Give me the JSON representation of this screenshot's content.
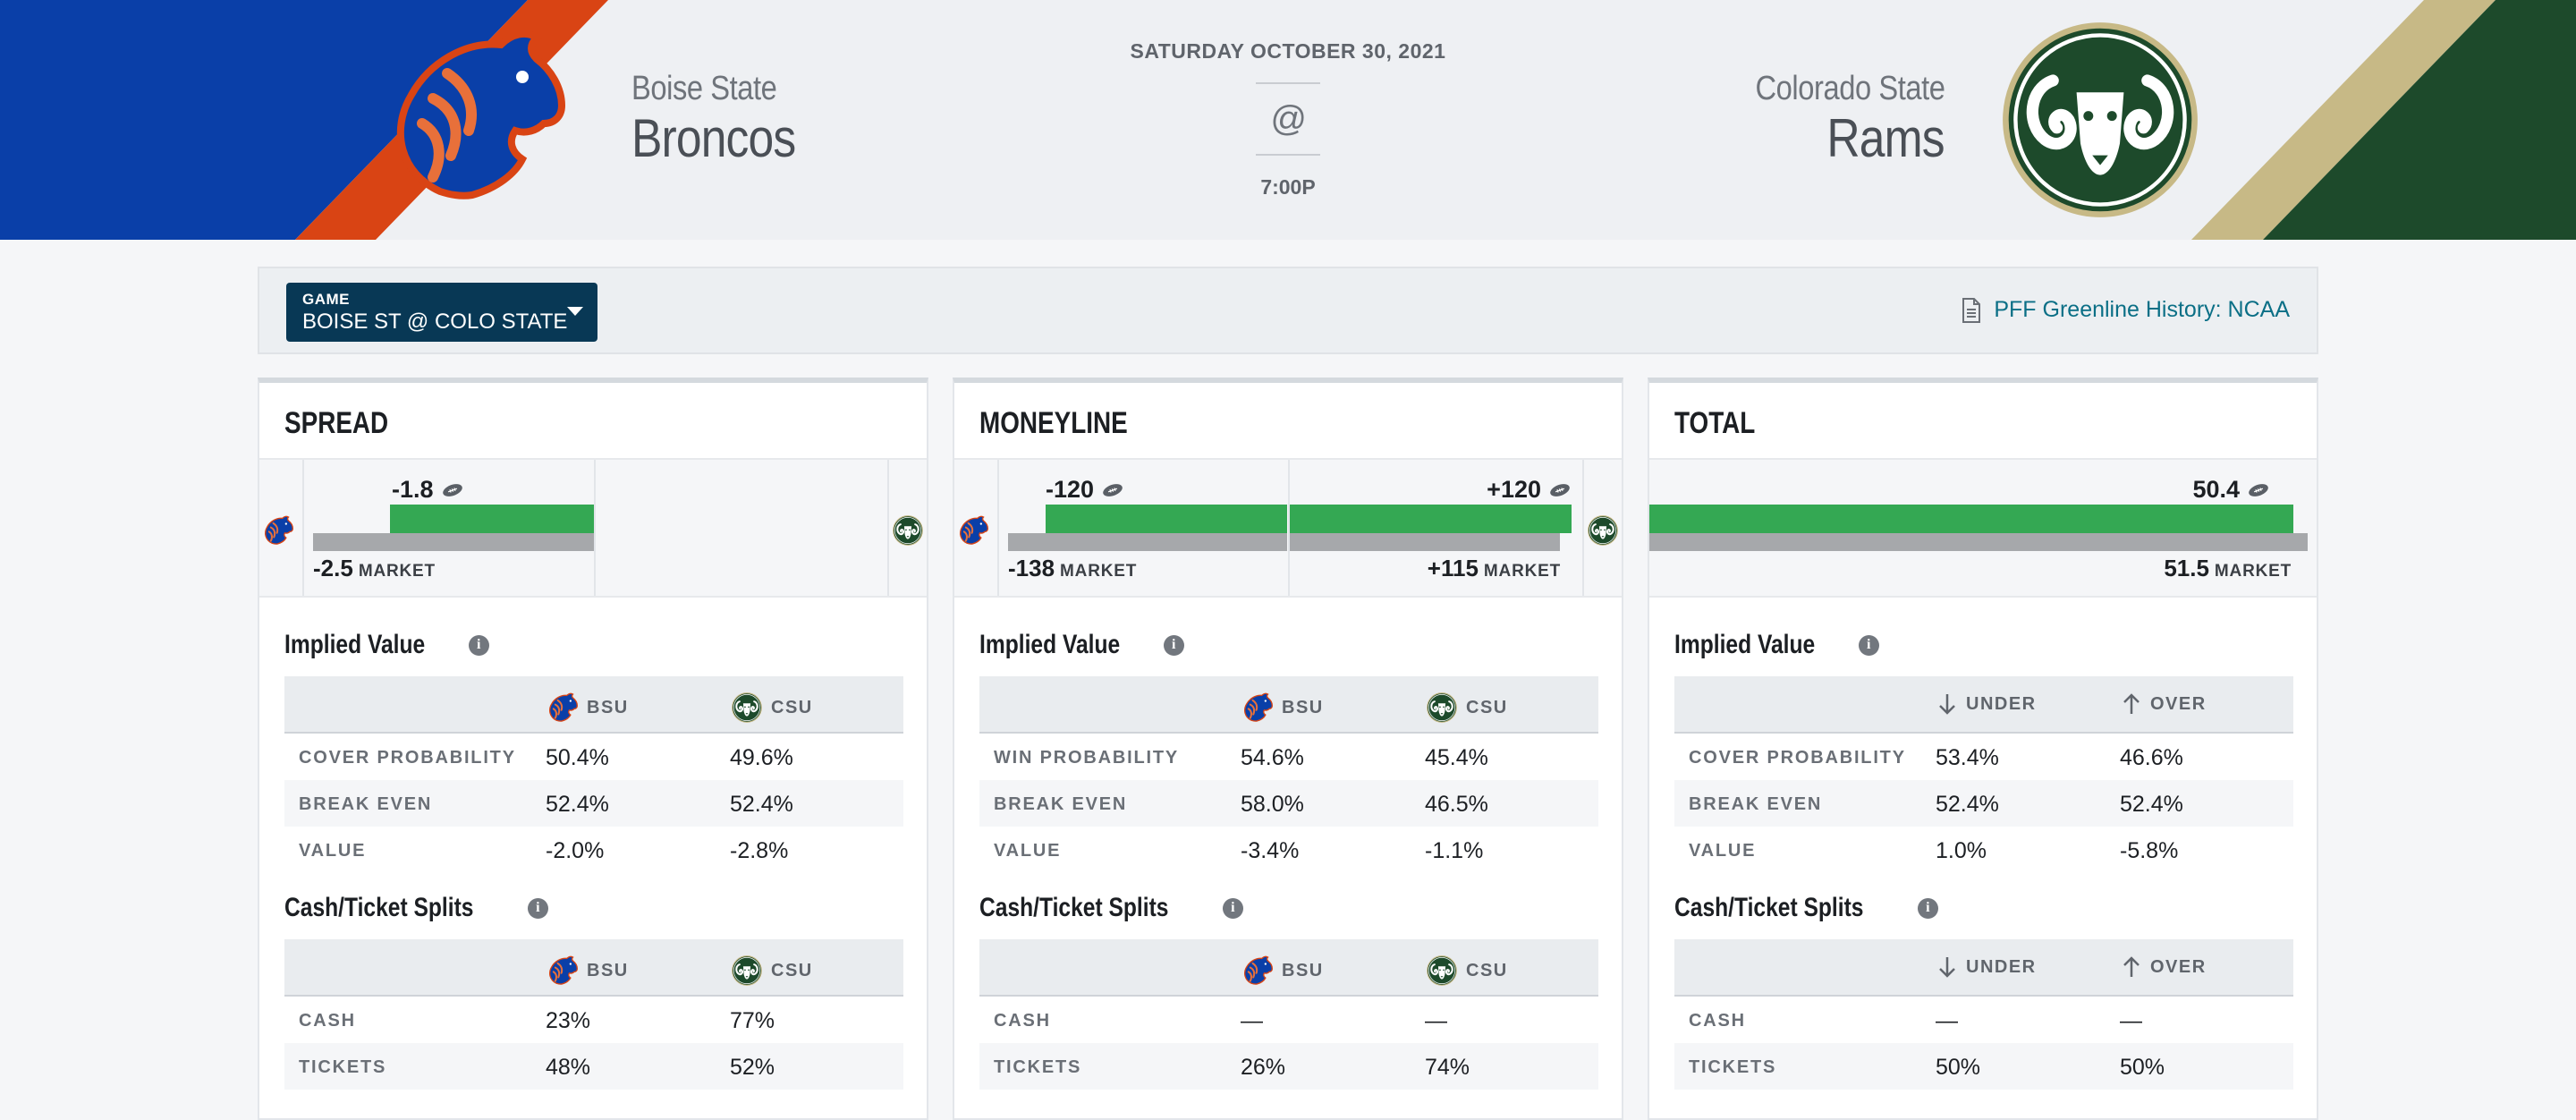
{
  "header": {
    "away": {
      "location": "Boise State",
      "name": "Broncos"
    },
    "home": {
      "location": "Colorado State",
      "name": "Rams"
    },
    "date": "SATURDAY OCTOBER 30, 2021",
    "at_symbol": "@",
    "time": "7:00P",
    "colors": {
      "away_blue": "#0a3fa8",
      "away_orange": "#d94414",
      "home_green": "#1d4a2b",
      "home_gold": "#c7b986"
    }
  },
  "game_bar": {
    "select_label": "GAME",
    "select_value": "BOISE ST @ COLO STATE",
    "history_link": "PFF Greenline History: NCAA"
  },
  "cards": {
    "spread": {
      "title": "SPREAD",
      "pff_value": "-1.8",
      "market_value": "-2.5",
      "market_label": "MARKET",
      "implied_title": "Implied Value",
      "col1": "BSU",
      "col2": "CSU",
      "implied_rows": [
        {
          "label": "COVER PROBABILITY",
          "c1": "50.4%",
          "c2": "49.6%"
        },
        {
          "label": "BREAK EVEN",
          "c1": "52.4%",
          "c2": "52.4%"
        },
        {
          "label": "VALUE",
          "c1": "-2.0%",
          "c2": "-2.8%"
        }
      ],
      "splits_title": "Cash/Ticket Splits",
      "split_rows": [
        {
          "label": "CASH",
          "c1": "23%",
          "c2": "77%"
        },
        {
          "label": "TICKETS",
          "c1": "48%",
          "c2": "52%"
        }
      ]
    },
    "moneyline": {
      "title": "MONEYLINE",
      "pff_left": "-120",
      "pff_right": "+120",
      "market_left": "-138",
      "market_right": "+115",
      "market_label": "MARKET",
      "implied_title": "Implied Value",
      "col1": "BSU",
      "col2": "CSU",
      "implied_rows": [
        {
          "label": "WIN PROBABILITY",
          "c1": "54.6%",
          "c2": "45.4%"
        },
        {
          "label": "BREAK EVEN",
          "c1": "58.0%",
          "c2": "46.5%"
        },
        {
          "label": "VALUE",
          "c1": "-3.4%",
          "c2": "-1.1%"
        }
      ],
      "splits_title": "Cash/Ticket Splits",
      "split_rows": [
        {
          "label": "CASH",
          "c1": "—",
          "c2": "—"
        },
        {
          "label": "TICKETS",
          "c1": "26%",
          "c2": "74%"
        }
      ]
    },
    "total": {
      "title": "TOTAL",
      "pff_value": "50.4",
      "market_value": "51.5",
      "market_label": "MARKET",
      "implied_title": "Implied Value",
      "col1": "UNDER",
      "col2": "OVER",
      "implied_rows": [
        {
          "label": "COVER PROBABILITY",
          "c1": "53.4%",
          "c2": "46.6%"
        },
        {
          "label": "BREAK EVEN",
          "c1": "52.4%",
          "c2": "52.4%"
        },
        {
          "label": "VALUE",
          "c1": "1.0%",
          "c2": "-5.8%"
        }
      ],
      "splits_title": "Cash/Ticket Splits",
      "split_rows": [
        {
          "label": "CASH",
          "c1": "—",
          "c2": "—"
        },
        {
          "label": "TICKETS",
          "c1": "50%",
          "c2": "50%"
        }
      ]
    }
  }
}
